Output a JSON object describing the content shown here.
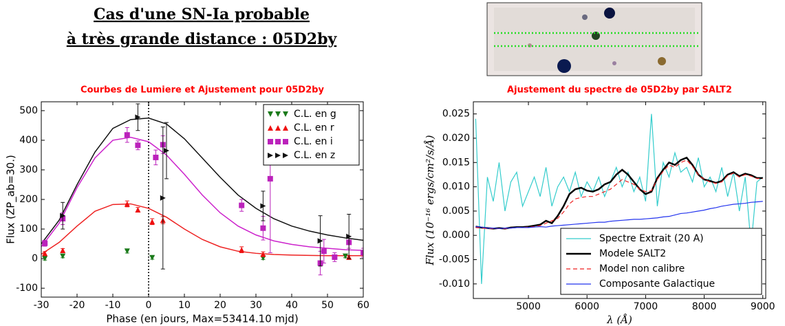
{
  "header": {
    "lines": [
      "Cas d'une SN-Ia probable",
      "à très grande distance : 05D2by"
    ]
  },
  "chart_data": [
    {
      "type": "scatter",
      "title": "Courbes de Lumiere et Ajustement pour 05D2by",
      "x_label": "Phase (en jours, Max=53414.10 mjd)",
      "y_label": "Flux (ZP_ab=30.)",
      "xlim": [
        -30,
        60
      ],
      "ylim": [
        -130,
        530
      ],
      "xticks": [
        -30,
        -20,
        -10,
        0,
        10,
        20,
        30,
        40,
        50,
        60
      ],
      "yticks": [
        -100,
        0,
        100,
        200,
        300,
        400,
        500
      ],
      "vline": 0,
      "legend": "upper right",
      "series": [
        {
          "name": "C.L. en g",
          "color": "#1a7a1a",
          "marker": "v",
          "x": [
            -29,
            -24,
            -6,
            1,
            32,
            55
          ],
          "values": [
            0,
            8,
            25,
            3,
            2,
            8
          ],
          "errors": [
            5,
            5,
            6,
            5,
            5,
            5
          ]
        },
        {
          "name": "C.L. en r",
          "color": "#ee1111",
          "marker": "^",
          "x": [
            -29,
            -24,
            -6,
            -3,
            1,
            4,
            26,
            32,
            56
          ],
          "values": [
            18,
            28,
            185,
            165,
            125,
            130,
            30,
            15,
            5
          ],
          "errors": [
            6,
            6,
            10,
            8,
            10,
            12,
            10,
            8,
            6
          ]
        },
        {
          "name": "C.L. en i",
          "color": "#bb22bb",
          "marker": "s",
          "x": [
            -29,
            -24,
            -6,
            -3,
            2,
            4,
            26,
            32,
            34,
            48,
            49,
            52,
            56,
            60
          ],
          "values": [
            52,
            135,
            418,
            383,
            342,
            385,
            180,
            103,
            270,
            -15,
            25,
            5,
            55,
            20
          ],
          "errors": [
            10,
            20,
            25,
            15,
            25,
            30,
            20,
            40,
            250,
            40,
            40,
            15,
            20,
            15
          ]
        },
        {
          "name": "C.L. en z",
          "color": "#111111",
          "marker": ">",
          "x": [
            -24,
            -3,
            4,
            5,
            32,
            48,
            56
          ],
          "values": [
            145,
            478,
            205,
            365,
            178,
            60,
            75
          ],
          "errors": [
            45,
            45,
            240,
            95,
            50,
            85,
            75
          ]
        }
      ],
      "fits": [
        {
          "color": "#111111",
          "x": [
            -30,
            -25,
            -20,
            -15,
            -10,
            -5,
            0,
            5,
            10,
            15,
            20,
            25,
            30,
            35,
            40,
            45,
            50,
            55,
            60
          ],
          "values": [
            50,
            130,
            250,
            360,
            440,
            470,
            475,
            455,
            405,
            340,
            275,
            215,
            170,
            135,
            110,
            93,
            80,
            70,
            62
          ]
        },
        {
          "color": "#cc22cc",
          "x": [
            -30,
            -25,
            -20,
            -15,
            -10,
            -5,
            0,
            5,
            10,
            15,
            20,
            25,
            30,
            35,
            40,
            45,
            50,
            55,
            60
          ],
          "values": [
            40,
            120,
            240,
            340,
            400,
            410,
            395,
            350,
            285,
            215,
            155,
            110,
            80,
            60,
            48,
            40,
            35,
            30,
            28
          ]
        },
        {
          "color": "#ee2222",
          "x": [
            -30,
            -25,
            -20,
            -15,
            -10,
            -5,
            0,
            5,
            10,
            15,
            20,
            25,
            30,
            35,
            40,
            45,
            50,
            55,
            60
          ],
          "values": [
            15,
            55,
            110,
            160,
            183,
            185,
            170,
            140,
            100,
            65,
            40,
            25,
            18,
            14,
            12,
            11,
            10,
            10,
            10
          ]
        }
      ]
    },
    {
      "type": "line",
      "title": "Ajustement du spectre de 05D2by par SALT2",
      "x_label": "λ (Å)",
      "y_label": "Flux (10⁻¹⁶ ergs/cm²/s/Å)",
      "xlim": [
        4060,
        9050
      ],
      "ylim": [
        -0.013,
        0.0275
      ],
      "xticks": [
        5000,
        6000,
        7000,
        8000,
        9000
      ],
      "yticks": [
        {
          "value": -0.01,
          "label": "-0.010"
        },
        {
          "value": -0.005,
          "label": "-0.005"
        },
        {
          "value": 0,
          "label": "0.000"
        },
        {
          "value": 0.005,
          "label": "0.005"
        },
        {
          "value": 0.01,
          "label": "0.010"
        },
        {
          "value": 0.015,
          "label": "0.015"
        },
        {
          "value": 0.02,
          "label": "0.020"
        },
        {
          "value": 0.025,
          "label": "0.025"
        }
      ],
      "legend": "lower right",
      "x": [
        4100,
        4200,
        4300,
        4400,
        4500,
        4600,
        4700,
        4800,
        4900,
        5000,
        5100,
        5200,
        5300,
        5400,
        5500,
        5600,
        5700,
        5800,
        5900,
        6000,
        6100,
        6200,
        6300,
        6400,
        6500,
        6600,
        6700,
        6800,
        6900,
        7000,
        7100,
        7200,
        7300,
        7400,
        7500,
        7600,
        7700,
        7800,
        7900,
        8000,
        8100,
        8200,
        8300,
        8400,
        8500,
        8600,
        8700,
        8800,
        8900,
        9000
      ],
      "series": [
        {
          "name": "Spectre Extrait (20 A)",
          "color": "#33cccc",
          "linewidth": 1.2,
          "linestyle": "solid",
          "values": [
            0.024,
            -0.01,
            0.012,
            0.007,
            0.015,
            0.005,
            0.011,
            0.013,
            0.006,
            0.009,
            0.012,
            0.008,
            0.014,
            0.006,
            0.01,
            0.012,
            0.009,
            0.013,
            0.008,
            0.011,
            0.009,
            0.012,
            0.008,
            0.011,
            0.014,
            0.01,
            0.013,
            0.009,
            0.012,
            0.007,
            0.025,
            0.006,
            0.015,
            0.012,
            0.017,
            0.013,
            0.014,
            0.011,
            0.016,
            0.01,
            0.012,
            0.009,
            0.014,
            0.008,
            0.013,
            0.005,
            0.012,
            -0.002,
            0.011,
            0.012
          ]
        },
        {
          "name": "Modele SALT2",
          "color": "#000000",
          "linewidth": 2.5,
          "linestyle": "solid",
          "values": [
            0.0018,
            0.0016,
            0.0015,
            0.0014,
            0.0015,
            0.0014,
            0.0016,
            0.0017,
            0.0017,
            0.0018,
            0.002,
            0.0022,
            0.003,
            0.0025,
            0.004,
            0.006,
            0.0085,
            0.0095,
            0.0098,
            0.0092,
            0.009,
            0.0095,
            0.0105,
            0.011,
            0.0125,
            0.0135,
            0.0125,
            0.011,
            0.0095,
            0.0085,
            0.009,
            0.0118,
            0.0135,
            0.015,
            0.0145,
            0.0155,
            0.016,
            0.0145,
            0.0125,
            0.0115,
            0.0112,
            0.0108,
            0.0112,
            0.0125,
            0.013,
            0.0122,
            0.0127,
            0.0124,
            0.0118,
            0.0118
          ]
        },
        {
          "name": "Model non calibre",
          "color": "#ee2222",
          "linewidth": 1.2,
          "linestyle": "dashed",
          "values": [
            0.0016,
            0.0015,
            0.0014,
            0.0014,
            0.0014,
            0.0014,
            0.0015,
            0.0016,
            0.0016,
            0.0017,
            0.0018,
            0.002,
            0.0025,
            0.003,
            0.0035,
            0.0048,
            0.0065,
            0.0075,
            0.0078,
            0.008,
            0.008,
            0.0085,
            0.009,
            0.0095,
            0.0105,
            0.0115,
            0.011,
            0.0105,
            0.0095,
            0.009,
            0.0092,
            0.0115,
            0.0132,
            0.0145,
            0.014,
            0.015,
            0.0155,
            0.0142,
            0.0125,
            0.0115,
            0.011,
            0.0107,
            0.011,
            0.0123,
            0.0128,
            0.012,
            0.0125,
            0.0122,
            0.0117,
            0.0117
          ]
        },
        {
          "name": "Composante Galactique",
          "color": "#2233ee",
          "linewidth": 1.2,
          "linestyle": "solid",
          "values": [
            0.0018,
            0.0017,
            0.0015,
            0.0015,
            0.0014,
            0.0015,
            0.0015,
            0.0016,
            0.0016,
            0.0016,
            0.0017,
            0.0018,
            0.0017,
            0.0019,
            0.002,
            0.0021,
            0.0022,
            0.0023,
            0.0024,
            0.0025,
            0.0026,
            0.0027,
            0.0027,
            0.0029,
            0.003,
            0.0031,
            0.0032,
            0.0033,
            0.0033,
            0.0034,
            0.0035,
            0.0036,
            0.0038,
            0.0039,
            0.0042,
            0.0045,
            0.0046,
            0.0048,
            0.005,
            0.0052,
            0.0055,
            0.0057,
            0.006,
            0.0062,
            0.0064,
            0.0065,
            0.0066,
            0.0068,
            0.0069,
            0.007
          ]
        }
      ]
    }
  ]
}
